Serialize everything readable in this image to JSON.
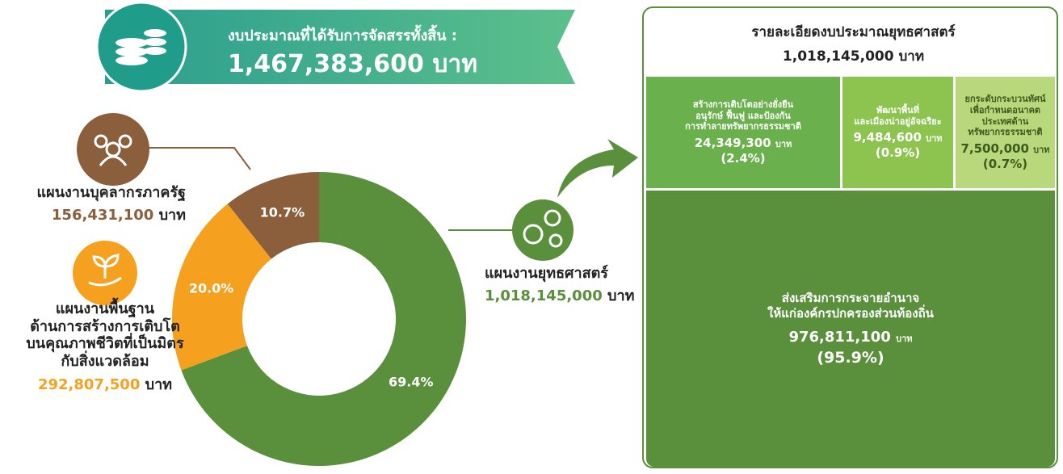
{
  "chart_data": [
    {
      "type": "pie",
      "title": "งบประมาณที่ได้รับการจัดสรรทั้งสิ้น :",
      "total_label": "1,467,383,600",
      "unit": "บาท",
      "categories": [
        "แผนงานยุทธศาสตร์",
        "แผนงานพื้นฐาน\nด้านการสร้างการเติบโต\nบนคุณภาพชีวิตที่เป็นมิตร\nกับสิ่งแวดล้อม",
        "แผนงานบุคลากรภาครัฐ"
      ],
      "values": [
        69.4,
        20.0,
        10.7
      ],
      "value_labels": [
        "69.4%",
        "20.0%",
        "10.7%"
      ],
      "amounts": [
        "1,018,145,000",
        "292,807,500",
        "156,431,100"
      ],
      "colors": [
        "#5a8f3c",
        "#f5a01f",
        "#8b5e3c"
      ]
    },
    {
      "type": "treemap",
      "title": "รายละเอียดงบประมาณยุทธศาสตร์",
      "total_label": "1,018,145,000",
      "unit": "บาท",
      "categories": [
        "สร้างการเติบโตอย่างยั่งยืน\nอนุรักษ์ ฟื้นฟู และป้องกัน\nการทำลายทรัพยากรธรรมชาติ",
        "พัฒนาพื้นที่\nและเมืองน่าอยู่อัจฉริยะ",
        "ยกระดับกระบวนทัศน์\nเพื่อกำหนดอนาคต\nประเทศด้าน\nทรัพยากรธรรมชาติ",
        "ส่งเสริมการกระจายอำนาจ\nให้แก่องค์กรปกครองส่วนท้องถิ่น"
      ],
      "amounts": [
        "24,349,300",
        "9,484,600",
        "7,500,000",
        "976,811,100"
      ],
      "values": [
        2.4,
        0.9,
        0.7,
        95.9
      ],
      "value_labels": [
        "(2.4%)",
        "(0.9%)",
        "(0.7%)",
        "(95.9%)"
      ],
      "colors": [
        "#6ab04c",
        "#8cc44f",
        "#b9d77b",
        "#5a8f3c"
      ]
    }
  ]
}
